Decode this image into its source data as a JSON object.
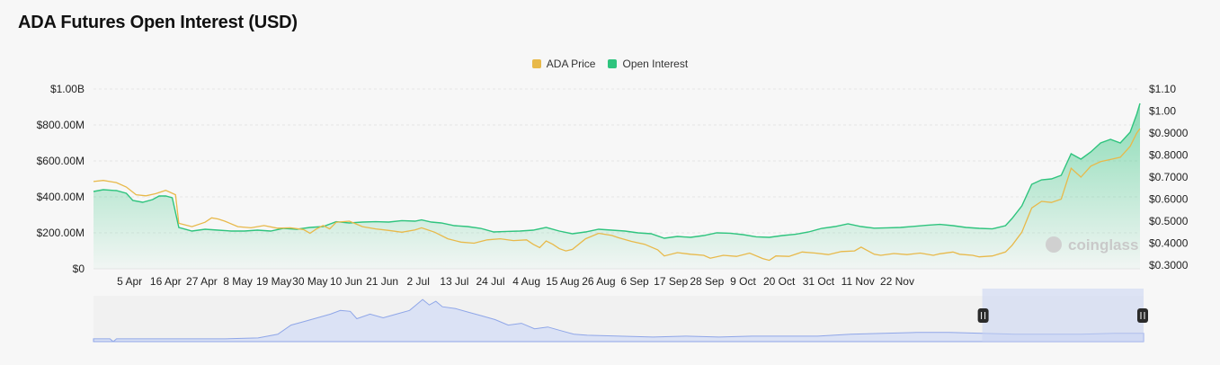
{
  "title": "ADA Futures Open Interest (USD)",
  "watermark": "coinglass",
  "colors": {
    "price": "#e8b94a",
    "oi": "#2fc47e",
    "navigator": "#8fa6e8"
  },
  "legend": [
    {
      "label": "ADA Price",
      "color": "#e8b94a"
    },
    {
      "label": "Open Interest",
      "color": "#2fc47e"
    }
  ],
  "chart_data": {
    "type": "line",
    "title": "ADA Futures Open Interest (USD)",
    "x_tick_labels": [
      "5 Apr",
      "16 Apr",
      "27 Apr",
      "8 May",
      "19 May",
      "30 May",
      "10 Jun",
      "21 Jun",
      "2 Jul",
      "13 Jul",
      "24 Jul",
      "4 Aug",
      "15 Aug",
      "26 Aug",
      "6 Sep",
      "17 Sep",
      "28 Sep",
      "9 Oct",
      "20 Oct",
      "31 Oct",
      "11 Nov",
      "22 Nov"
    ],
    "y_left_ticks": [
      "$0",
      "$200.00M",
      "$400.00M",
      "$600.00M",
      "$800.00M",
      "$1.00B"
    ],
    "y_right_ticks": [
      "$0.3000",
      "$0.4000",
      "$0.5000",
      "$0.6000",
      "$0.7000",
      "$0.8000",
      "$0.9000",
      "$1.00",
      "$1.10"
    ],
    "y_left_range": [
      0,
      1000
    ],
    "y_left_unit": "M USD",
    "y_right_range": [
      0.28,
      1.1
    ],
    "grid": true,
    "legend_position": "top-center",
    "x_day_range": [
      0,
      235
    ],
    "series": [
      {
        "name": "Open Interest",
        "axis": "left",
        "points": [
          [
            0,
            430
          ],
          [
            3,
            440
          ],
          [
            7,
            435
          ],
          [
            10,
            420
          ],
          [
            12,
            380
          ],
          [
            15,
            370
          ],
          [
            18,
            385
          ],
          [
            20,
            405
          ],
          [
            22,
            405
          ],
          [
            24,
            395
          ],
          [
            26,
            230
          ],
          [
            30,
            210
          ],
          [
            34,
            220
          ],
          [
            38,
            215
          ],
          [
            42,
            210
          ],
          [
            46,
            210
          ],
          [
            50,
            215
          ],
          [
            54,
            210
          ],
          [
            58,
            225
          ],
          [
            62,
            220
          ],
          [
            66,
            230
          ],
          [
            70,
            235
          ],
          [
            74,
            262
          ],
          [
            78,
            255
          ],
          [
            82,
            260
          ],
          [
            86,
            262
          ],
          [
            90,
            260
          ],
          [
            94,
            268
          ],
          [
            98,
            265
          ],
          [
            100,
            272
          ],
          [
            103,
            260
          ],
          [
            106,
            255
          ],
          [
            110,
            240
          ],
          [
            114,
            235
          ],
          [
            118,
            225
          ],
          [
            122,
            205
          ],
          [
            126,
            208
          ],
          [
            130,
            210
          ],
          [
            134,
            215
          ],
          [
            138,
            230
          ],
          [
            142,
            210
          ],
          [
            146,
            195
          ],
          [
            150,
            205
          ],
          [
            154,
            220
          ],
          [
            158,
            215
          ],
          [
            162,
            210
          ],
          [
            166,
            200
          ],
          [
            170,
            195
          ],
          [
            174,
            170
          ],
          [
            178,
            180
          ],
          [
            182,
            175
          ],
          [
            186,
            185
          ],
          [
            190,
            200
          ],
          [
            194,
            198
          ],
          [
            198,
            190
          ],
          [
            202,
            178
          ],
          [
            206,
            175
          ],
          [
            210,
            185
          ],
          [
            214,
            192
          ],
          [
            218,
            205
          ],
          [
            222,
            225
          ],
          [
            226,
            235
          ],
          [
            230,
            250
          ],
          [
            234,
            235
          ],
          [
            238,
            226
          ],
          [
            242,
            228
          ],
          [
            246,
            230
          ],
          [
            250,
            236
          ],
          [
            254,
            242
          ],
          [
            258,
            247
          ],
          [
            262,
            240
          ],
          [
            266,
            230
          ],
          [
            270,
            225
          ],
          [
            274,
            222
          ],
          [
            278,
            240
          ],
          [
            280,
            280
          ],
          [
            283,
            350
          ],
          [
            286,
            470
          ],
          [
            289,
            495
          ],
          [
            292,
            500
          ],
          [
            295,
            520
          ],
          [
            298,
            640
          ],
          [
            301,
            610
          ],
          [
            304,
            650
          ],
          [
            307,
            700
          ],
          [
            310,
            720
          ],
          [
            313,
            700
          ],
          [
            316,
            760
          ],
          [
            318,
            860
          ],
          [
            319,
            920
          ]
        ]
      },
      {
        "name": "ADA Price",
        "axis": "right",
        "points": [
          [
            0,
            0.68
          ],
          [
            3,
            0.685
          ],
          [
            7,
            0.675
          ],
          [
            10,
            0.655
          ],
          [
            13,
            0.62
          ],
          [
            16,
            0.615
          ],
          [
            19,
            0.625
          ],
          [
            22,
            0.64
          ],
          [
            25,
            0.62
          ],
          [
            26,
            0.49
          ],
          [
            30,
            0.475
          ],
          [
            34,
            0.495
          ],
          [
            36,
            0.515
          ],
          [
            38,
            0.51
          ],
          [
            40,
            0.5
          ],
          [
            44,
            0.475
          ],
          [
            48,
            0.47
          ],
          [
            52,
            0.48
          ],
          [
            56,
            0.468
          ],
          [
            60,
            0.47
          ],
          [
            64,
            0.462
          ],
          [
            66,
            0.445
          ],
          [
            68,
            0.465
          ],
          [
            70,
            0.48
          ],
          [
            72,
            0.465
          ],
          [
            74,
            0.495
          ],
          [
            78,
            0.5
          ],
          [
            82,
            0.475
          ],
          [
            86,
            0.465
          ],
          [
            90,
            0.458
          ],
          [
            94,
            0.45
          ],
          [
            98,
            0.46
          ],
          [
            100,
            0.47
          ],
          [
            104,
            0.45
          ],
          [
            108,
            0.42
          ],
          [
            112,
            0.405
          ],
          [
            116,
            0.4
          ],
          [
            120,
            0.415
          ],
          [
            124,
            0.42
          ],
          [
            128,
            0.412
          ],
          [
            132,
            0.415
          ],
          [
            134,
            0.395
          ],
          [
            136,
            0.38
          ],
          [
            138,
            0.41
          ],
          [
            140,
            0.395
          ],
          [
            142,
            0.375
          ],
          [
            144,
            0.365
          ],
          [
            146,
            0.372
          ],
          [
            150,
            0.42
          ],
          [
            154,
            0.445
          ],
          [
            158,
            0.435
          ],
          [
            160,
            0.425
          ],
          [
            164,
            0.408
          ],
          [
            168,
            0.395
          ],
          [
            172,
            0.37
          ],
          [
            174,
            0.342
          ],
          [
            178,
            0.357
          ],
          [
            182,
            0.35
          ],
          [
            186,
            0.345
          ],
          [
            188,
            0.332
          ],
          [
            192,
            0.345
          ],
          [
            196,
            0.34
          ],
          [
            200,
            0.355
          ],
          [
            204,
            0.33
          ],
          [
            206,
            0.322
          ],
          [
            208,
            0.342
          ],
          [
            212,
            0.34
          ],
          [
            216,
            0.36
          ],
          [
            220,
            0.355
          ],
          [
            224,
            0.348
          ],
          [
            228,
            0.362
          ],
          [
            232,
            0.365
          ],
          [
            234,
            0.382
          ],
          [
            238,
            0.35
          ],
          [
            240,
            0.345
          ],
          [
            244,
            0.353
          ],
          [
            248,
            0.348
          ],
          [
            252,
            0.355
          ],
          [
            256,
            0.345
          ],
          [
            258,
            0.352
          ],
          [
            262,
            0.36
          ],
          [
            264,
            0.35
          ],
          [
            268,
            0.345
          ],
          [
            270,
            0.338
          ],
          [
            274,
            0.342
          ],
          [
            278,
            0.36
          ],
          [
            280,
            0.39
          ],
          [
            283,
            0.45
          ],
          [
            286,
            0.56
          ],
          [
            289,
            0.59
          ],
          [
            292,
            0.585
          ],
          [
            295,
            0.6
          ],
          [
            298,
            0.74
          ],
          [
            301,
            0.7
          ],
          [
            304,
            0.75
          ],
          [
            307,
            0.77
          ],
          [
            310,
            0.78
          ],
          [
            313,
            0.79
          ],
          [
            316,
            0.84
          ],
          [
            318,
            0.9
          ],
          [
            319,
            0.92
          ]
        ]
      }
    ],
    "navigator": {
      "type": "area",
      "points": [
        [
          0,
          3
        ],
        [
          5,
          3
        ],
        [
          6,
          0
        ],
        [
          7,
          3
        ],
        [
          20,
          3
        ],
        [
          40,
          3
        ],
        [
          50,
          4
        ],
        [
          56,
          8
        ],
        [
          60,
          18
        ],
        [
          64,
          22
        ],
        [
          68,
          26
        ],
        [
          72,
          30
        ],
        [
          75,
          34
        ],
        [
          78,
          33
        ],
        [
          80,
          25
        ],
        [
          84,
          30
        ],
        [
          88,
          26
        ],
        [
          92,
          30
        ],
        [
          96,
          34
        ],
        [
          98,
          40
        ],
        [
          100,
          46
        ],
        [
          102,
          40
        ],
        [
          104,
          44
        ],
        [
          106,
          38
        ],
        [
          110,
          36
        ],
        [
          114,
          32
        ],
        [
          118,
          28
        ],
        [
          122,
          24
        ],
        [
          126,
          18
        ],
        [
          130,
          20
        ],
        [
          134,
          14
        ],
        [
          138,
          16
        ],
        [
          142,
          12
        ],
        [
          146,
          8
        ],
        [
          150,
          7
        ],
        [
          160,
          6
        ],
        [
          170,
          5
        ],
        [
          180,
          6
        ],
        [
          190,
          5
        ],
        [
          200,
          6
        ],
        [
          210,
          6
        ],
        [
          220,
          6
        ],
        [
          230,
          8
        ],
        [
          240,
          9
        ],
        [
          250,
          10
        ],
        [
          260,
          10
        ],
        [
          270,
          9
        ],
        [
          280,
          8
        ],
        [
          290,
          8
        ],
        [
          300,
          8
        ],
        [
          310,
          9
        ],
        [
          319,
          9
        ]
      ],
      "selection_start_day": 270,
      "selection_end_day": 319
    }
  }
}
